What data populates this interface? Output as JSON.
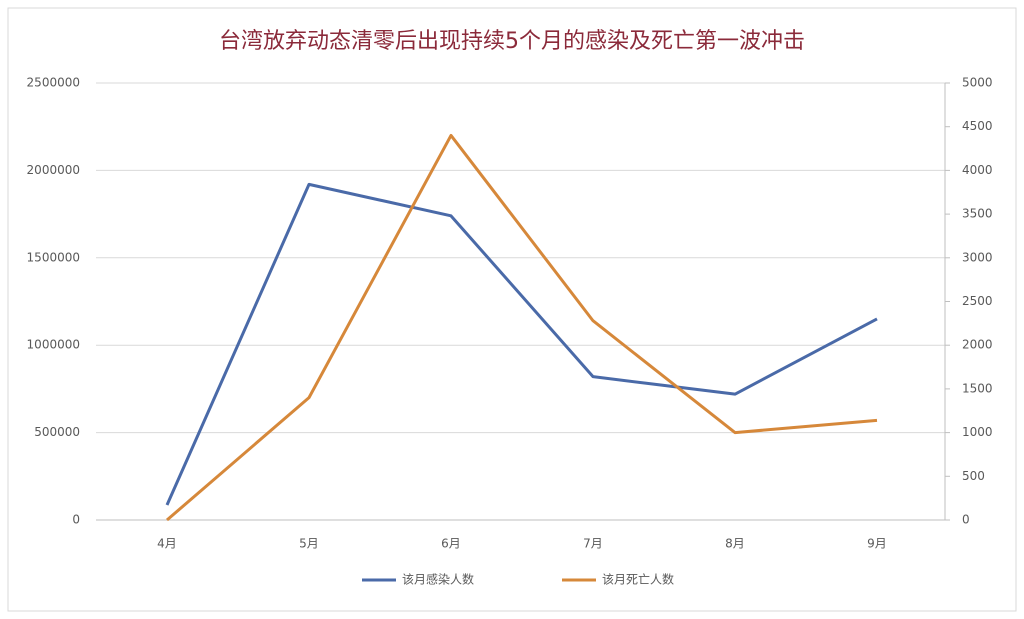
{
  "chart_data": {
    "type": "line",
    "title": "台湾放弃动态清零后出现持续5个月的感染及死亡第一波冲击",
    "categories": [
      "4月",
      "5月",
      "6月",
      "7月",
      "8月",
      "9月"
    ],
    "series": [
      {
        "name": "该月感染人数",
        "color": "#4a6aa8",
        "values": [
          86000,
          1920000,
          1740000,
          820000,
          720000,
          1150000
        ]
      },
      {
        "name": "该月死亡人数",
        "color": "#d6883a",
        "axis": "y2",
        "values": [
          0,
          1400,
          4400,
          2280,
          1000,
          1140
        ]
      }
    ],
    "ylim": [
      0,
      2500000
    ],
    "yticks": [
      0,
      500000,
      1000000,
      1500000,
      2000000,
      2500000
    ],
    "y2lim": [
      0,
      5000
    ],
    "y2ticks": [
      0,
      500,
      1000,
      1500,
      2000,
      2500,
      3000,
      3500,
      4000,
      4500,
      5000
    ],
    "grid": true,
    "legend": "bottom"
  }
}
